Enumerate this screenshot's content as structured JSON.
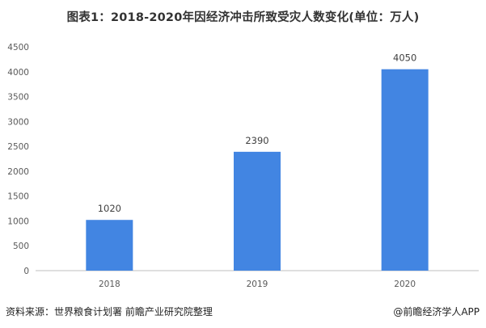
{
  "title": "图表1：2018-2020年因经济冲击所致受灾人数变化(单位：万人)",
  "source": "资料来源：世界粮食计划署 前瞻产业研究院整理",
  "credit": "@前瞻经济学人APP",
  "colors": {
    "bar": "#4285E2",
    "axis": "#BFBFBF"
  },
  "chart_data": {
    "type": "bar",
    "title": "图表1：2018-2020年因经济冲击所致受灾人数变化(单位：万人)",
    "categories": [
      "2018",
      "2019",
      "2020"
    ],
    "values": [
      1020,
      2390,
      4050
    ],
    "data_labels": [
      "1020",
      "2390",
      "4050"
    ],
    "yticks": [
      0,
      500,
      1000,
      1500,
      2000,
      2500,
      3000,
      3500,
      4000,
      4500
    ],
    "ytick_labels": [
      "0",
      "500",
      "1000",
      "1500",
      "2000",
      "2500",
      "3000",
      "3500",
      "4000",
      "4500"
    ],
    "ylim": [
      0,
      4500
    ],
    "grid": false,
    "legend": "none"
  }
}
